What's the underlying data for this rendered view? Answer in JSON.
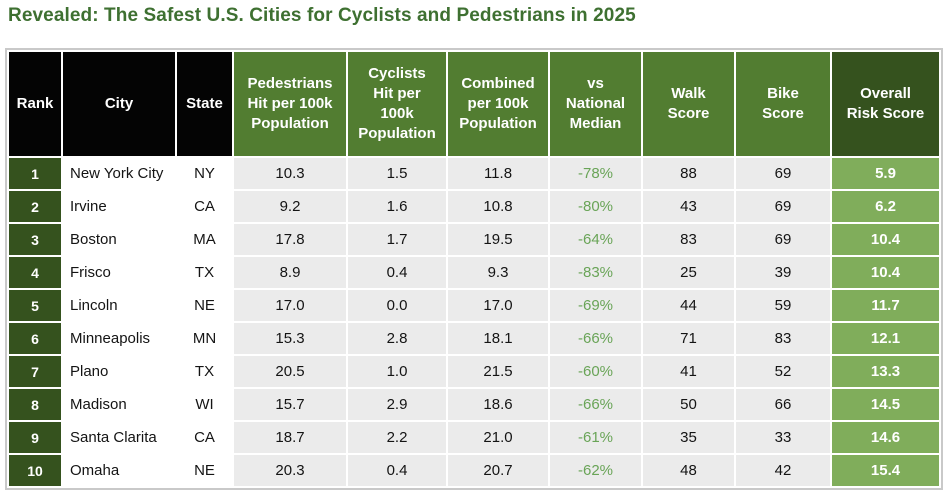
{
  "title": "Revealed: The Safest U.S. Cities for Cyclists and Pedestrians in 2025",
  "colors": {
    "title_green": "#3e7031",
    "header_black": "#040404",
    "header_green": "#527d31",
    "header_dark_green": "#35521e",
    "rank_cell_green": "#35521e",
    "risk_cell_green": "#80ad5b",
    "numeric_cell_gray": "#ebebeb",
    "median_text_green": "#69a457",
    "outer_border": "#c9c9c9"
  },
  "chart_data": {
    "type": "table",
    "title": "Revealed: The Safest U.S. Cities for Cyclists and Pedestrians in 2025",
    "columns": [
      "Rank",
      "City",
      "State",
      "Pedestrians\nHit per 100k\nPopulation",
      "Cyclists\nHit per\n100k\nPopulation",
      "Combined\nper 100k\nPopulation",
      "vs\nNational\nMedian",
      "Walk\nScore",
      "Bike\nScore",
      "Overall\nRisk Score"
    ],
    "rows": [
      [
        "1",
        "New York City",
        "NY",
        "10.3",
        "1.5",
        "11.8",
        "-78%",
        "88",
        "69",
        "5.9"
      ],
      [
        "2",
        "Irvine",
        "CA",
        "9.2",
        "1.6",
        "10.8",
        "-80%",
        "43",
        "69",
        "6.2"
      ],
      [
        "3",
        "Boston",
        "MA",
        "17.8",
        "1.7",
        "19.5",
        "-64%",
        "83",
        "69",
        "10.4"
      ],
      [
        "4",
        "Frisco",
        "TX",
        "8.9",
        "0.4",
        "9.3",
        "-83%",
        "25",
        "39",
        "10.4"
      ],
      [
        "5",
        "Lincoln",
        "NE",
        "17.0",
        "0.0",
        "17.0",
        "-69%",
        "44",
        "59",
        "11.7"
      ],
      [
        "6",
        "Minneapolis",
        "MN",
        "15.3",
        "2.8",
        "18.1",
        "-66%",
        "71",
        "83",
        "12.1"
      ],
      [
        "7",
        "Plano",
        "TX",
        "20.5",
        "1.0",
        "21.5",
        "-60%",
        "41",
        "52",
        "13.3"
      ],
      [
        "8",
        "Madison",
        "WI",
        "15.7",
        "2.9",
        "18.6",
        "-66%",
        "50",
        "66",
        "14.5"
      ],
      [
        "9",
        "Santa Clarita",
        "CA",
        "18.7",
        "2.2",
        "21.0",
        "-61%",
        "35",
        "33",
        "14.6"
      ],
      [
        "10",
        "Omaha",
        "NE",
        "20.3",
        "0.4",
        "20.7",
        "-62%",
        "48",
        "42",
        "15.4"
      ]
    ]
  }
}
